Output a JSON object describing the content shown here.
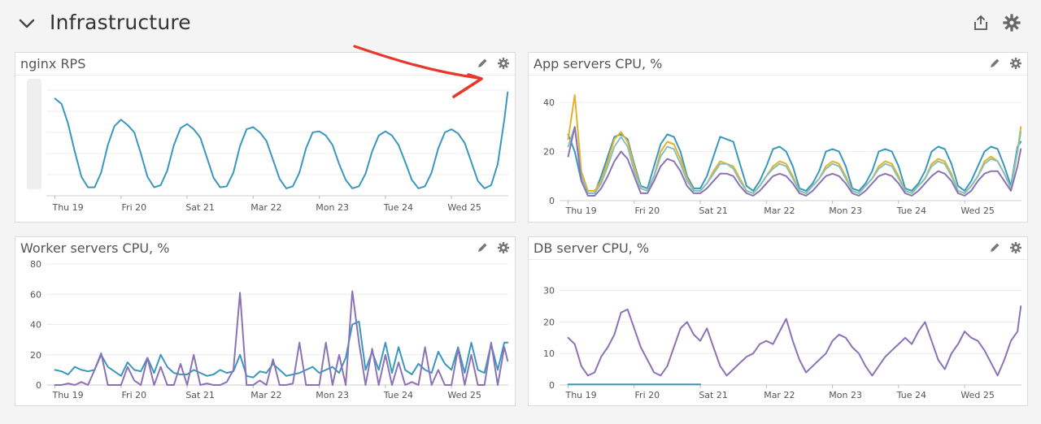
{
  "dashboard": {
    "title": "Infrastructure",
    "header_icons": [
      "chevron-down-icon",
      "share-icon",
      "gear-icon"
    ]
  },
  "panels": [
    {
      "id": "nginx",
      "title": "nginx RPS",
      "icons": [
        "pencil-icon",
        "gear-icon"
      ],
      "y_ticks_visible": false,
      "annotation": "red-arrow-pointing-to-spike"
    },
    {
      "id": "app",
      "title": "App servers CPU, %",
      "icons": [
        "pencil-icon",
        "gear-icon"
      ]
    },
    {
      "id": "worker",
      "title": "Worker servers CPU, %",
      "icons": [
        "pencil-icon",
        "gear-icon"
      ]
    },
    {
      "id": "db",
      "title": "DB server CPU, %",
      "icons": [
        "pencil-icon",
        "gear-icon"
      ]
    }
  ],
  "chart_data": [
    {
      "type": "line",
      "title": "nginx RPS",
      "x": [
        0,
        0.1,
        0.2,
        0.3,
        0.4,
        0.5,
        0.6,
        0.7,
        0.8,
        0.9,
        1,
        1.1,
        1.2,
        1.3,
        1.4,
        1.5,
        1.6,
        1.7,
        1.8,
        1.9,
        2,
        2.1,
        2.2,
        2.3,
        2.4,
        2.5,
        2.6,
        2.7,
        2.8,
        2.9,
        3,
        3.1,
        3.2,
        3.3,
        3.4,
        3.5,
        3.6,
        3.7,
        3.8,
        3.9,
        4,
        4.1,
        4.2,
        4.3,
        4.4,
        4.5,
        4.6,
        4.7,
        4.8,
        4.9,
        5,
        5.1,
        5.2,
        5.3,
        5.4,
        5.5,
        5.6,
        5.7,
        5.8,
        5.9,
        6,
        6.1,
        6.2,
        6.3,
        6.4,
        6.5,
        6.6,
        6.7,
        6.8,
        6.85
      ],
      "xtick_positions": [
        0,
        1,
        2,
        3,
        4,
        5,
        6
      ],
      "xtick_labels": [
        "Thu 19",
        "Fri 20",
        "Sat 21",
        "Mar 22",
        "Mon 23",
        "Tue 24",
        "Wed 25"
      ],
      "xlim": [
        -0.13,
        6.86
      ],
      "ylim": [
        0,
        1
      ],
      "series": [
        {
          "color": "#3a97bd",
          "values": [
            0.92,
            0.87,
            0.68,
            0.42,
            0.18,
            0.08,
            0.08,
            0.22,
            0.48,
            0.66,
            0.72,
            0.67,
            0.6,
            0.4,
            0.18,
            0.08,
            0.1,
            0.24,
            0.48,
            0.64,
            0.68,
            0.63,
            0.55,
            0.36,
            0.17,
            0.08,
            0.09,
            0.22,
            0.47,
            0.63,
            0.65,
            0.6,
            0.52,
            0.34,
            0.16,
            0.07,
            0.09,
            0.22,
            0.45,
            0.6,
            0.61,
            0.57,
            0.48,
            0.3,
            0.15,
            0.07,
            0.09,
            0.21,
            0.42,
            0.57,
            0.61,
            0.57,
            0.48,
            0.32,
            0.15,
            0.07,
            0.09,
            0.22,
            0.45,
            0.6,
            0.63,
            0.59,
            0.5,
            0.32,
            0.14,
            0.07,
            0.1,
            0.3,
            0.72,
            0.98
          ]
        }
      ]
    },
    {
      "type": "line",
      "title": "App servers CPU, %",
      "x": [
        0,
        0.1,
        0.2,
        0.3,
        0.4,
        0.5,
        0.6,
        0.7,
        0.8,
        0.9,
        1,
        1.1,
        1.2,
        1.3,
        1.4,
        1.5,
        1.6,
        1.7,
        1.8,
        1.9,
        2,
        2.1,
        2.2,
        2.3,
        2.4,
        2.5,
        2.6,
        2.7,
        2.8,
        2.9,
        3,
        3.1,
        3.2,
        3.3,
        3.4,
        3.5,
        3.6,
        3.7,
        3.8,
        3.9,
        4,
        4.1,
        4.2,
        4.3,
        4.4,
        4.5,
        4.6,
        4.7,
        4.8,
        4.9,
        5,
        5.1,
        5.2,
        5.3,
        5.4,
        5.5,
        5.6,
        5.7,
        5.8,
        5.9,
        6,
        6.1,
        6.2,
        6.3,
        6.4,
        6.5,
        6.6,
        6.7,
        6.8,
        6.85
      ],
      "xtick_positions": [
        0,
        1,
        2,
        3,
        4,
        5,
        6
      ],
      "xtick_labels": [
        "Thu 19",
        "Fri 20",
        "Sat 21",
        "Mar 22",
        "Mon 23",
        "Tue 24",
        "Wed 25"
      ],
      "xlim": [
        -0.13,
        6.86
      ],
      "ylim": [
        0,
        45
      ],
      "yticks": [
        0,
        20,
        40
      ],
      "series": [
        {
          "color": "#3a97bd",
          "values": [
            27,
            20,
            8,
            3,
            3,
            10,
            18,
            26,
            27,
            25,
            15,
            6,
            5,
            14,
            23,
            27,
            26,
            20,
            10,
            5,
            5,
            10,
            18,
            26,
            25,
            24,
            15,
            6,
            4,
            8,
            14,
            21,
            22,
            20,
            14,
            5,
            4,
            7,
            12,
            20,
            21,
            20,
            14,
            5,
            4,
            7,
            12,
            20,
            21,
            20,
            14,
            5,
            4,
            7,
            12,
            20,
            22,
            21,
            15,
            6,
            4,
            8,
            14,
            20,
            22,
            21,
            14,
            6,
            22,
            24
          ]
        },
        {
          "color": "#e4b32c",
          "values": [
            25,
            43,
            12,
            4,
            4,
            8,
            16,
            25,
            28,
            24,
            14,
            5,
            4,
            10,
            20,
            24,
            23,
            17,
            9,
            4,
            4,
            7,
            12,
            16,
            15,
            14,
            9,
            4,
            3,
            6,
            10,
            14,
            16,
            15,
            10,
            4,
            3,
            6,
            9,
            14,
            16,
            15,
            10,
            4,
            3,
            6,
            9,
            14,
            16,
            15,
            10,
            4,
            3,
            6,
            9,
            15,
            17,
            16,
            11,
            4,
            3,
            6,
            10,
            16,
            18,
            16,
            11,
            5,
            20,
            30
          ]
        },
        {
          "color": "#88c1b9",
          "values": [
            22,
            30,
            10,
            3,
            3,
            7,
            14,
            22,
            26,
            22,
            12,
            5,
            4,
            10,
            18,
            22,
            21,
            15,
            8,
            4,
            4,
            7,
            11,
            15,
            15,
            13,
            8,
            4,
            3,
            6,
            10,
            13,
            15,
            14,
            9,
            4,
            3,
            6,
            9,
            13,
            15,
            14,
            9,
            4,
            3,
            6,
            9,
            13,
            15,
            14,
            9,
            4,
            3,
            6,
            9,
            14,
            16,
            15,
            10,
            4,
            3,
            6,
            10,
            15,
            17,
            16,
            11,
            5,
            20,
            28
          ]
        },
        {
          "color": "#8b73b5",
          "values": [
            18,
            30,
            8,
            2,
            2,
            5,
            10,
            16,
            20,
            17,
            10,
            3,
            3,
            8,
            14,
            17,
            16,
            12,
            6,
            3,
            3,
            5,
            8,
            11,
            11,
            10,
            6,
            3,
            2,
            4,
            7,
            10,
            11,
            10,
            7,
            3,
            2,
            4,
            7,
            10,
            11,
            10,
            7,
            3,
            2,
            4,
            7,
            10,
            11,
            10,
            7,
            3,
            2,
            4,
            7,
            10,
            12,
            11,
            8,
            3,
            2,
            4,
            8,
            11,
            12,
            12,
            8,
            4,
            14,
            21
          ]
        }
      ]
    },
    {
      "type": "line",
      "title": "Worker servers CPU, %",
      "x": [
        0,
        0.1,
        0.2,
        0.3,
        0.4,
        0.5,
        0.6,
        0.7,
        0.8,
        0.9,
        1,
        1.1,
        1.2,
        1.3,
        1.4,
        1.5,
        1.6,
        1.7,
        1.8,
        1.9,
        2,
        2.1,
        2.2,
        2.3,
        2.4,
        2.5,
        2.6,
        2.7,
        2.8,
        2.9,
        3,
        3.1,
        3.2,
        3.3,
        3.4,
        3.5,
        3.6,
        3.7,
        3.8,
        3.9,
        4,
        4.1,
        4.2,
        4.3,
        4.4,
        4.5,
        4.6,
        4.7,
        4.8,
        4.9,
        5,
        5.1,
        5.2,
        5.3,
        5.4,
        5.5,
        5.6,
        5.7,
        5.8,
        5.9,
        6,
        6.1,
        6.2,
        6.3,
        6.4,
        6.5,
        6.6,
        6.7,
        6.8,
        6.85
      ],
      "xtick_positions": [
        0,
        1,
        2,
        3,
        4,
        5,
        6
      ],
      "xtick_labels": [
        "Thu 19",
        "Fri 20",
        "Sat 21",
        "Mar 22",
        "Mon 23",
        "Tue 24",
        "Wed 25"
      ],
      "xlim": [
        -0.13,
        6.86
      ],
      "ylim": [
        0,
        80
      ],
      "yticks": [
        0,
        20,
        40,
        60,
        80
      ],
      "series": [
        {
          "color": "#3a97bd",
          "values": [
            10,
            9,
            7,
            12,
            10,
            9,
            10,
            20,
            12,
            9,
            6,
            15,
            10,
            9,
            18,
            8,
            20,
            12,
            8,
            7,
            7,
            10,
            8,
            6,
            7,
            10,
            8,
            9,
            20,
            6,
            5,
            9,
            8,
            14,
            10,
            6,
            7,
            8,
            10,
            12,
            8,
            10,
            12,
            8,
            18,
            40,
            42,
            10,
            22,
            10,
            28,
            8,
            25,
            10,
            7,
            14,
            10,
            8,
            22,
            14,
            10,
            25,
            8,
            28,
            10,
            8,
            27,
            10,
            28,
            28
          ]
        },
        {
          "color": "#8b73b5",
          "values": [
            0,
            0,
            1,
            0,
            2,
            0,
            10,
            21,
            0,
            0,
            0,
            12,
            3,
            0,
            18,
            0,
            12,
            0,
            0,
            14,
            0,
            20,
            0,
            1,
            0,
            0,
            2,
            10,
            61,
            0,
            0,
            3,
            0,
            17,
            0,
            0,
            1,
            28,
            0,
            0,
            0,
            28,
            0,
            20,
            0,
            62,
            28,
            0,
            24,
            0,
            20,
            0,
            15,
            0,
            2,
            0,
            25,
            0,
            10,
            0,
            0,
            24,
            0,
            20,
            0,
            0,
            28,
            0,
            25,
            16
          ]
        }
      ]
    },
    {
      "type": "line",
      "title": "DB server CPU, %",
      "x": [
        0,
        0.1,
        0.2,
        0.3,
        0.4,
        0.5,
        0.6,
        0.7,
        0.8,
        0.9,
        1,
        1.1,
        1.2,
        1.3,
        1.4,
        1.5,
        1.6,
        1.7,
        1.8,
        1.9,
        2,
        2.1,
        2.2,
        2.3,
        2.4,
        2.5,
        2.6,
        2.7,
        2.8,
        2.9,
        3,
        3.1,
        3.2,
        3.3,
        3.4,
        3.5,
        3.6,
        3.7,
        3.8,
        3.9,
        4,
        4.1,
        4.2,
        4.3,
        4.4,
        4.5,
        4.6,
        4.7,
        4.8,
        4.9,
        5,
        5.1,
        5.2,
        5.3,
        5.4,
        5.5,
        5.6,
        5.7,
        5.8,
        5.9,
        6,
        6.1,
        6.2,
        6.3,
        6.4,
        6.5,
        6.6,
        6.7,
        6.8,
        6.85
      ],
      "xtick_positions": [
        0,
        1,
        2,
        3,
        4,
        5,
        6
      ],
      "xtick_labels": [
        "Thu 19",
        "Fri 20",
        "Sat 21",
        "Mar 22",
        "Mon 23",
        "Tue 24",
        "Wed 25"
      ],
      "xlim": [
        -0.13,
        6.86
      ],
      "ylim": [
        0,
        33
      ],
      "yticks": [
        0,
        10,
        20,
        30
      ],
      "series": [
        {
          "color": "#8b73b5",
          "values": [
            15,
            13,
            6,
            3,
            4,
            9,
            12,
            16,
            23,
            24,
            18,
            12,
            8,
            4,
            3,
            6,
            12,
            18,
            20,
            16,
            14,
            18,
            12,
            6,
            3,
            5,
            7,
            9,
            10,
            13,
            14,
            13,
            17,
            21,
            14,
            8,
            4,
            6,
            8,
            10,
            14,
            16,
            15,
            12,
            10,
            6,
            3,
            6,
            9,
            11,
            13,
            15,
            13,
            17,
            20,
            14,
            8,
            5,
            10,
            13,
            17,
            15,
            14,
            11,
            7,
            3,
            8,
            14,
            17,
            25
          ]
        },
        {
          "color": "#3a97bd",
          "x": [
            0,
            2
          ],
          "values": [
            0.2,
            0.2
          ]
        }
      ]
    }
  ]
}
